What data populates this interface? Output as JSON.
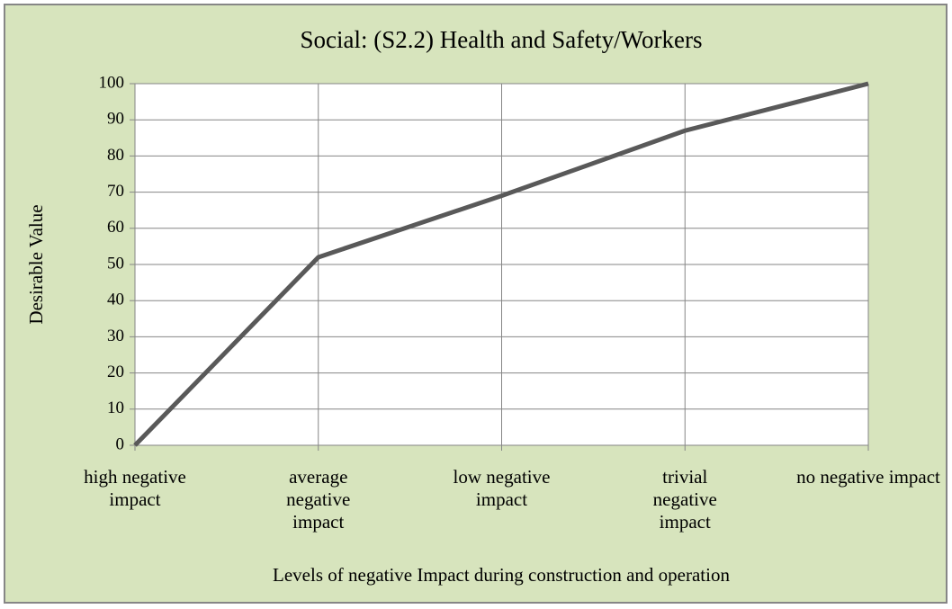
{
  "chart_data": {
    "type": "line",
    "title": "Social: (S2.2) Health and Safety/Workers",
    "xlabel": "Levels of  negative Impact during construction and operation",
    "ylabel": "Desirable Value",
    "categories": [
      "high negative impact",
      "average negative impact",
      "low negative impact",
      "trivial negative impact",
      "no negative impact"
    ],
    "values": [
      0,
      52,
      69,
      87,
      100
    ],
    "color": "#595959",
    "ylim": [
      0,
      100
    ],
    "yticks": [
      0,
      10,
      20,
      30,
      40,
      50,
      60,
      70,
      80,
      90,
      100
    ],
    "grid": true
  }
}
